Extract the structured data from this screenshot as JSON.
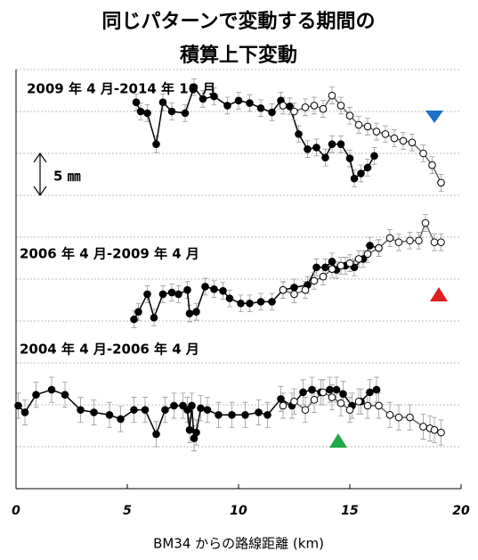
{
  "chart_data": {
    "type": "scatter",
    "title": [
      "同じパターンで変動する期間の",
      "積算上下変動"
    ],
    "xlabel": "BM34 からの路線距離 (km)",
    "xlim": [
      0,
      20
    ],
    "xticks": [
      0,
      5,
      10,
      15,
      20
    ],
    "ylim": [
      0,
      50
    ],
    "yticks": [
      0,
      5,
      10,
      15,
      20,
      25,
      30,
      35,
      40,
      45,
      50
    ],
    "grid": true,
    "annotations": [
      "2009 年 4 月-2014 年 10 月",
      "2006 年 4 月-2009 年 4 月",
      "2004 年 4 月-2006 年 4 月"
    ],
    "scale_bar": {
      "value": 5,
      "label": "5 ㎜"
    },
    "series": [
      {
        "color": "#000000",
        "error": 1.0,
        "x": [
          5.4,
          5.6,
          5.9,
          6.3,
          6.6,
          7.0,
          7.6,
          8.0,
          8.4,
          8.9,
          9.5,
          10.0,
          10.5,
          11.0,
          11.5,
          11.9,
          12.3,
          12.7,
          13.1,
          13.5,
          13.9,
          14.2,
          14.6,
          15.0,
          15.2,
          15.5,
          15.8,
          16.1
        ],
        "values": [
          46.1,
          45.0,
          44.8,
          41.1,
          46.1,
          45.0,
          44.8,
          47.9,
          46.5,
          46.8,
          45.7,
          46.3,
          46.0,
          45.4,
          44.9,
          46.3,
          45.6,
          42.3,
          40.5,
          40.7,
          39.5,
          41.1,
          41.1,
          39.4,
          37.0,
          37.6,
          38.3,
          39.7
        ]
      },
      {
        "color": "#ffffff",
        "error": 1.0,
        "x": [
          12.0,
          12.5,
          13.0,
          13.4,
          13.8,
          14.2,
          14.6,
          15.0,
          15.4,
          15.8,
          16.2,
          16.6,
          17.0,
          17.4,
          17.8,
          18.3,
          18.7,
          19.1
        ],
        "values": [
          45.7,
          45.0,
          45.5,
          45.7,
          45.3,
          46.9,
          45.7,
          44.5,
          43.4,
          43.2,
          42.6,
          42.3,
          41.8,
          41.5,
          41.3,
          40.0,
          38.6,
          36.5
        ]
      },
      {
        "color": "#000000",
        "error": 1.0,
        "x": [
          5.3,
          5.5,
          5.9,
          6.2,
          6.6,
          7.0,
          7.3,
          7.7,
          7.8,
          8.1,
          8.5,
          8.9,
          9.3,
          9.6,
          10.1,
          10.5,
          11.0,
          11.5,
          12.0,
          12.5,
          13.1,
          13.5,
          13.9,
          14.2,
          14.4,
          14.8,
          15.2,
          15.6,
          15.9,
          16.3
        ],
        "values": [
          20.2,
          21.1,
          23.2,
          20.4,
          23.2,
          23.4,
          23.2,
          23.7,
          20.9,
          21.1,
          24.1,
          23.8,
          23.6,
          22.7,
          22.1,
          22.1,
          22.3,
          22.3,
          23.7,
          24.0,
          24.3,
          26.4,
          26.4,
          27.1,
          26.1,
          26.6,
          26.4,
          27.4,
          29.0,
          28.7
        ]
      },
      {
        "color": "#ffffff",
        "error": 1.0,
        "x": [
          12.0,
          12.5,
          13.0,
          13.4,
          13.8,
          14.2,
          14.6,
          15.0,
          15.4,
          15.8,
          16.3,
          16.8,
          17.2,
          17.7,
          18.1,
          18.4,
          18.8,
          19.1
        ],
        "values": [
          23.7,
          23.2,
          23.7,
          24.8,
          25.3,
          26.2,
          26.6,
          26.9,
          27.4,
          28.0,
          28.7,
          29.9,
          29.4,
          29.6,
          29.6,
          31.7,
          29.4,
          29.4
        ]
      },
      {
        "color": "#000000",
        "error": 1.5,
        "x": [
          0.1,
          0.4,
          0.9,
          1.6,
          2.2,
          2.9,
          3.5,
          4.2,
          4.7,
          5.3,
          5.8,
          6.3,
          6.7,
          7.1,
          7.5,
          7.7,
          7.8,
          7.9,
          8.0,
          8.1,
          8.3,
          8.6,
          9.1,
          9.7,
          10.3,
          10.9,
          11.3,
          11.9,
          12.4,
          12.9,
          13.3,
          13.7,
          14.1,
          14.4,
          14.7,
          15.1,
          15.5,
          15.9,
          16.2
        ],
        "values": [
          9.9,
          9.1,
          11.2,
          11.8,
          11.2,
          9.4,
          9.1,
          8.8,
          8.3,
          9.4,
          9.4,
          6.5,
          9.4,
          9.9,
          9.9,
          9.4,
          7.0,
          9.9,
          6.0,
          6.7,
          9.6,
          9.4,
          8.8,
          8.8,
          8.8,
          9.1,
          8.8,
          10.7,
          9.9,
          11.5,
          11.8,
          11.5,
          11.8,
          11.8,
          11.3,
          9.9,
          10.4,
          11.5,
          11.8
        ]
      },
      {
        "color": "#ffffff",
        "error": 1.5,
        "x": [
          12.0,
          12.5,
          13.0,
          13.4,
          13.8,
          14.2,
          14.6,
          15.0,
          15.4,
          15.8,
          16.3,
          16.8,
          17.2,
          17.7,
          18.3,
          18.6,
          18.8,
          19.1
        ],
        "values": [
          9.9,
          10.4,
          9.4,
          10.6,
          11.5,
          10.9,
          10.2,
          9.4,
          10.4,
          9.9,
          9.9,
          8.8,
          8.5,
          8.5,
          7.4,
          7.2,
          7.0,
          6.7
        ]
      }
    ]
  }
}
